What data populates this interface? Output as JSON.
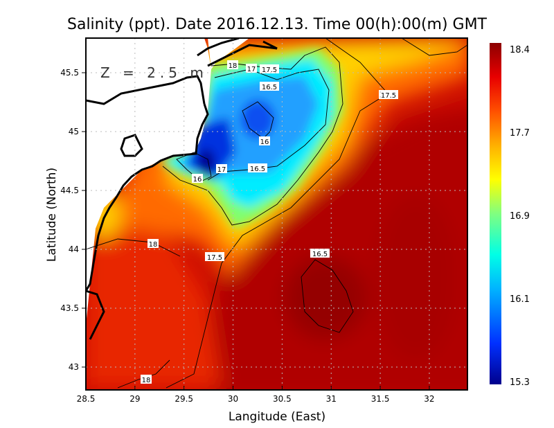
{
  "title": "Salinity (ppt). Date 2016.12.13. Time 00(h):00(m) GMT",
  "depth_label": "Z = 2.5 m",
  "xlabel": "Langitude (East)",
  "ylabel": "Latitude (North)",
  "x_ticks": [
    "28.5",
    "29",
    "29.5",
    "30",
    "30.5",
    "31",
    "31.5",
    "32"
  ],
  "y_ticks": [
    "45.5",
    "45",
    "44.5",
    "44",
    "43.5",
    "43"
  ],
  "colorbar": {
    "labels": [
      "18.4",
      "17.7",
      "16.9",
      "16.1",
      "15.3"
    ],
    "min": 15.3,
    "max": 18.4,
    "colors": [
      "#00008c",
      "#0030ff",
      "#00b4ff",
      "#00ffe6",
      "#80ff80",
      "#ffff00",
      "#ffb000",
      "#ff5000",
      "#e80000",
      "#8c0000"
    ]
  },
  "contour_labels": [
    "18",
    "17",
    "17.5",
    "16.5",
    "17.5",
    "16",
    "16.5",
    "17",
    "16",
    "18",
    "17.5",
    "16.5",
    "18"
  ],
  "chart_data": {
    "type": "heatmap",
    "variable": "Salinity (ppt)",
    "xlim": [
      28.5,
      32.4
    ],
    "ylim": [
      42.8,
      45.8
    ],
    "contour_levels": [
      16,
      16.5,
      17,
      17.5,
      18
    ],
    "range": [
      15.3,
      18.4
    ]
  }
}
